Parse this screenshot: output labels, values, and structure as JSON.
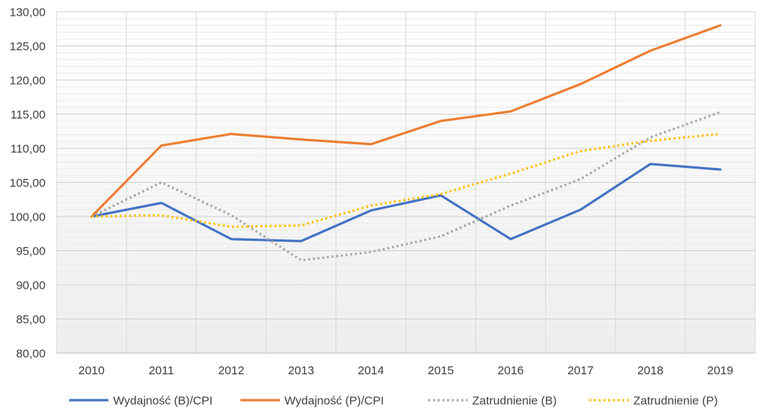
{
  "chart_data": {
    "type": "line",
    "title": "",
    "xlabel": "",
    "ylabel": "",
    "categories": [
      "2010",
      "2011",
      "2012",
      "2013",
      "2014",
      "2015",
      "2016",
      "2017",
      "2018",
      "2019"
    ],
    "ylim": [
      80,
      130
    ],
    "ytick_step": 5,
    "y_tick_labels": [
      "80,00",
      "85,00",
      "90,00",
      "95,00",
      "100,00",
      "105,00",
      "110,00",
      "115,00",
      "120,00",
      "125,00",
      "130,00"
    ],
    "grid": true,
    "legend_position": "bottom",
    "series": [
      {
        "name": "Wydajność (B)/CPI",
        "color": "#4472C4",
        "dash": "solid",
        "values": [
          100.0,
          102.0,
          96.7,
          96.4,
          100.9,
          103.1,
          96.7,
          101.0,
          107.7,
          106.9
        ]
      },
      {
        "name": "Wydajność (P)/CPI",
        "color": "#ED7D31",
        "dash": "solid",
        "values": [
          100.0,
          110.4,
          112.1,
          111.3,
          110.6,
          114.0,
          115.4,
          119.4,
          124.3,
          128.0
        ]
      },
      {
        "name": "Zatrudnienie (B)",
        "color": "#A5A5A5",
        "dash": "dotted",
        "values": [
          100.0,
          105.0,
          100.2,
          93.6,
          94.8,
          97.1,
          101.6,
          105.5,
          111.6,
          115.3
        ]
      },
      {
        "name": "Zatrudnienie (P)",
        "color": "#FFC000",
        "dash": "dotted",
        "values": [
          100.0,
          100.2,
          98.5,
          98.7,
          101.6,
          103.3,
          106.3,
          109.6,
          111.1,
          112.1
        ]
      }
    ]
  }
}
